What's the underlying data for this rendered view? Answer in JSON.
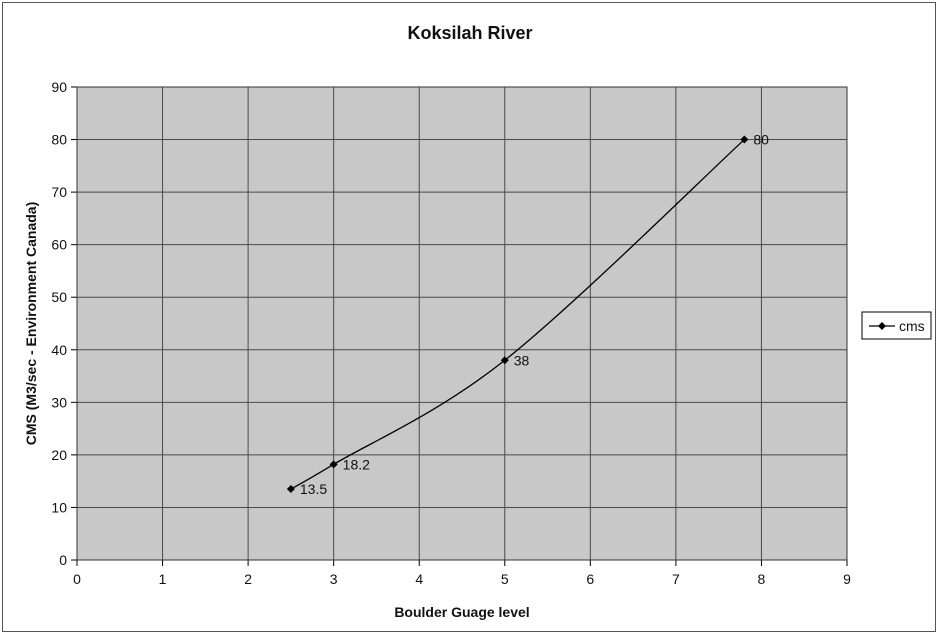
{
  "chart_data": {
    "type": "line",
    "title": "Koksilah River",
    "xlabel": "Boulder Guage level",
    "ylabel": "CMS (M3/sec - Environment Canada)",
    "xlim": [
      0,
      9
    ],
    "ylim": [
      0,
      90
    ],
    "xticks": [
      "0",
      "1",
      "2",
      "3",
      "4",
      "5",
      "6",
      "7",
      "8",
      "9"
    ],
    "yticks": [
      "0",
      "10",
      "20",
      "30",
      "40",
      "50",
      "60",
      "70",
      "80",
      "90"
    ],
    "grid": true,
    "smooth": true,
    "legend_position": "right",
    "plot_background": "#c8c8c8",
    "series": [
      {
        "name": "cms",
        "color": "#000000",
        "marker": "diamond",
        "points": [
          {
            "x": 2.5,
            "y": 13.5,
            "label": "13.5"
          },
          {
            "x": 3,
            "y": 18.2,
            "label": "18.2"
          },
          {
            "x": 5,
            "y": 38,
            "label": "38"
          },
          {
            "x": 7.8,
            "y": 80,
            "label": "80"
          }
        ]
      }
    ]
  }
}
